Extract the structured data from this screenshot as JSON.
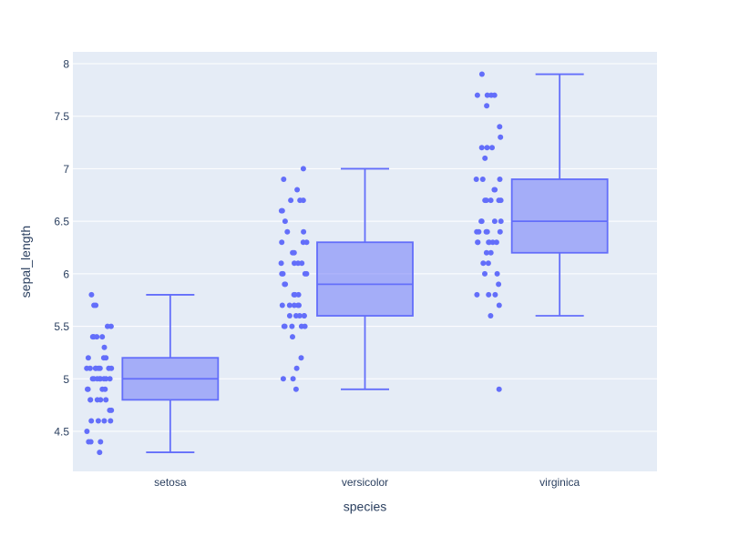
{
  "figure": {
    "background_color": "#ffffff",
    "plot_bgcolor": "#e5ecf6",
    "grid_color": "#ffffff",
    "accent_color": "#636efa",
    "box_fill_color": "rgba(99,110,250,0.5)",
    "font_color": "#2a3f5f"
  },
  "chart_data": {
    "type": "box",
    "title": "",
    "xlabel": "species",
    "ylabel": "sepal_length",
    "categories": [
      "setosa",
      "versicolor",
      "virginica"
    ],
    "ytick_labels": [
      "4.5",
      "5",
      "5.5",
      "6",
      "6.5",
      "7",
      "7.5",
      "8"
    ],
    "ylim": [
      4.11,
      8.11
    ],
    "grid": "horizontal-only",
    "legend": "none",
    "points_shown": "all",
    "marker_size_px": 6,
    "series": [
      {
        "name": "setosa",
        "whisker_low": 4.3,
        "q1": 4.8,
        "median": 5.0,
        "q3": 5.2,
        "whisker_high": 5.8,
        "outliers": [],
        "points": [
          5.1,
          4.9,
          4.7,
          4.6,
          5.0,
          5.4,
          4.6,
          5.0,
          4.4,
          4.9,
          5.4,
          4.8,
          4.8,
          4.3,
          5.8,
          5.7,
          5.4,
          5.1,
          5.7,
          5.1,
          5.4,
          5.1,
          4.6,
          5.1,
          4.8,
          5.0,
          5.0,
          5.2,
          5.2,
          4.7,
          4.8,
          5.4,
          5.2,
          5.5,
          4.9,
          5.0,
          5.5,
          4.9,
          4.4,
          5.1,
          5.0,
          4.5,
          4.4,
          5.0,
          5.1,
          4.8,
          5.1,
          4.6,
          5.3,
          5.0
        ]
      },
      {
        "name": "versicolor",
        "whisker_low": 4.9,
        "q1": 5.6,
        "median": 5.9,
        "q3": 6.3,
        "whisker_high": 7.0,
        "outliers": [],
        "points": [
          7.0,
          6.4,
          6.9,
          5.5,
          6.5,
          5.7,
          6.3,
          4.9,
          6.6,
          5.2,
          5.0,
          5.9,
          6.0,
          6.1,
          5.6,
          6.7,
          5.6,
          5.8,
          6.2,
          5.6,
          5.9,
          6.1,
          6.3,
          6.1,
          6.4,
          6.6,
          6.8,
          6.7,
          6.0,
          5.7,
          5.5,
          5.5,
          5.8,
          6.0,
          5.4,
          6.0,
          6.7,
          6.3,
          5.6,
          5.5,
          5.5,
          6.1,
          5.8,
          5.0,
          5.6,
          5.7,
          5.7,
          6.2,
          5.1,
          5.7
        ]
      },
      {
        "name": "virginica",
        "whisker_low": 5.6,
        "q1": 6.2,
        "median": 6.5,
        "q3": 6.9,
        "whisker_high": 7.9,
        "outliers": [
          4.9
        ],
        "points": [
          6.3,
          5.8,
          7.1,
          6.3,
          6.5,
          7.6,
          4.9,
          7.3,
          6.7,
          7.2,
          6.5,
          6.4,
          6.8,
          5.7,
          5.8,
          6.4,
          6.5,
          7.7,
          7.7,
          6.0,
          6.9,
          5.6,
          7.7,
          6.3,
          6.7,
          7.2,
          6.2,
          6.1,
          6.4,
          7.2,
          7.4,
          7.9,
          6.4,
          6.3,
          6.1,
          7.7,
          6.3,
          6.4,
          6.0,
          6.9,
          6.7,
          6.9,
          5.8,
          6.8,
          6.7,
          6.7,
          6.3,
          6.5,
          6.2,
          5.9
        ]
      }
    ]
  }
}
